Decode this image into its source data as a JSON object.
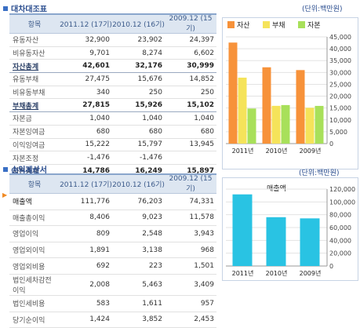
{
  "balance": {
    "title": "대차대조표",
    "unit": "(단위:백만원)",
    "headers": [
      "항목",
      "2011.12 (17기)",
      "2010.12 (16기)",
      "2009.12 (15기)"
    ],
    "rows": [
      {
        "label": "유동자산",
        "v": [
          "32,900",
          "23,902",
          "24,397"
        ],
        "sum": false
      },
      {
        "label": "비유동자산",
        "v": [
          "9,701",
          "8,274",
          "6,602"
        ],
        "sum": false
      },
      {
        "label": "자산총계",
        "v": [
          "42,601",
          "32,176",
          "30,999"
        ],
        "sum": true
      },
      {
        "label": "유동부채",
        "v": [
          "27,475",
          "15,676",
          "14,852"
        ],
        "sum": false
      },
      {
        "label": "비유동부채",
        "v": [
          "340",
          "250",
          "250"
        ],
        "sum": false
      },
      {
        "label": "부채총계",
        "v": [
          "27,815",
          "15,926",
          "15,102"
        ],
        "sum": true
      },
      {
        "label": "자본금",
        "v": [
          "1,040",
          "1,040",
          "1,040"
        ],
        "sum": false
      },
      {
        "label": "자본잉여금",
        "v": [
          "680",
          "680",
          "680"
        ],
        "sum": false
      },
      {
        "label": "이익잉여금",
        "v": [
          "15,222",
          "15,797",
          "13,945"
        ],
        "sum": false
      },
      {
        "label": "자본조정",
        "v": [
          "-1,476",
          "-1,476",
          ""
        ],
        "sum": false
      },
      {
        "label": "자본총계",
        "v": [
          "14,786",
          "16,249",
          "15,897"
        ],
        "sum": true
      }
    ]
  },
  "income": {
    "title": "손익계산서",
    "unit": "(단위:백만원)",
    "headers": [
      "항목",
      "2011.12 (17기)",
      "2010.12 (16기)",
      "2009.12 (15기)"
    ],
    "selected_marker": "▶",
    "rows": [
      {
        "label": "매출액",
        "v": [
          "111,776",
          "76,203",
          "74,331"
        ],
        "sel": true
      },
      {
        "label": "매출총이익",
        "v": [
          "8,406",
          "9,023",
          "11,578"
        ]
      },
      {
        "label": "영업이익",
        "v": [
          "809",
          "2,548",
          "3,943"
        ]
      },
      {
        "label": "영업외이익",
        "v": [
          "1,891",
          "3,138",
          "968"
        ]
      },
      {
        "label": "영업외비용",
        "v": [
          "692",
          "223",
          "1,501"
        ]
      },
      {
        "label": "법인세차감전이익",
        "v": [
          "2,008",
          "5,463",
          "3,409"
        ]
      },
      {
        "label": "법인세비용",
        "v": [
          "583",
          "1,611",
          "957"
        ]
      },
      {
        "label": "당기순이익",
        "v": [
          "1,424",
          "3,852",
          "2,453"
        ]
      }
    ]
  },
  "chart_data": [
    {
      "type": "bar",
      "title": "",
      "categories": [
        "2011년",
        "2010년",
        "2009년"
      ],
      "series": [
        {
          "name": "자산",
          "values": [
            42601,
            32176,
            30999
          ],
          "color": "#f7923a"
        },
        {
          "name": "부채",
          "values": [
            27815,
            15926,
            15102
          ],
          "color": "#f5e35a"
        },
        {
          "name": "자본",
          "values": [
            14786,
            16249,
            15897
          ],
          "color": "#a8e05a"
        }
      ],
      "yticks": [
        "45,000",
        "40,000",
        "35,000",
        "30,000",
        "25,000",
        "20,000",
        "15,000",
        "10,000",
        "5,000",
        "0"
      ],
      "ylim": [
        0,
        45000
      ],
      "legend": "top"
    },
    {
      "type": "bar",
      "title": "매출액",
      "categories": [
        "2011년",
        "2010년",
        "2009년"
      ],
      "series": [
        {
          "name": "매출액",
          "values": [
            111776,
            76203,
            74331
          ],
          "color": "#29c3e3"
        }
      ],
      "yticks": [
        "120,000",
        "100,000",
        "80,000",
        "60,000",
        "40,000",
        "20,000",
        "0"
      ],
      "ylim": [
        0,
        120000
      ]
    }
  ]
}
